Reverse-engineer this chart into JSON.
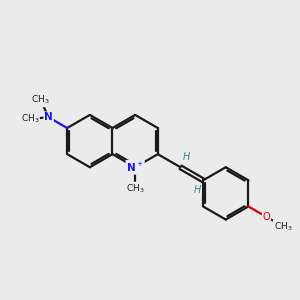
{
  "bg_color": "#ebebeb",
  "bond_color": "#1a1a1a",
  "n_color": "#1414ff",
  "o_color": "#e00000",
  "h_color": "#3a8a8a",
  "lw": 1.6,
  "figsize": [
    3.0,
    3.0
  ],
  "dpi": 100,
  "xlim": [
    0,
    10
  ],
  "ylim": [
    0,
    10
  ],
  "BL": 0.88
}
